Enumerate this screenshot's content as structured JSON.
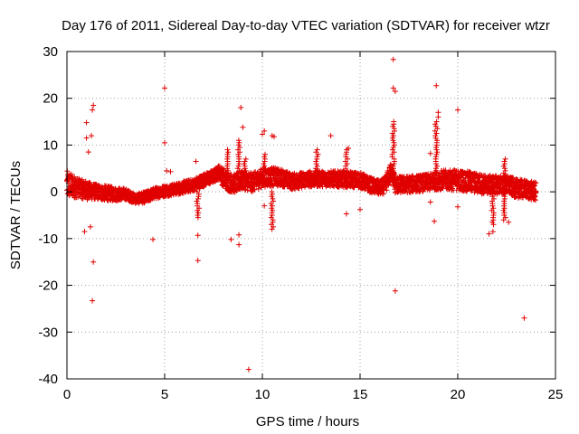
{
  "chart_data": {
    "type": "scatter",
    "title": "Day 176 of 2011, Sidereal Day-to-day VTEC variation (SDTVAR) for receiver wtzr",
    "xlabel": "GPS time / hours",
    "ylabel": "SDTVAR / TECUs",
    "xlim": [
      0,
      25
    ],
    "ylim": [
      -40,
      30
    ],
    "xticks": [
      0,
      5,
      10,
      15,
      20,
      25
    ],
    "yticks": [
      -40,
      -30,
      -20,
      -10,
      0,
      10,
      20,
      30
    ],
    "grid": true,
    "marker": "+",
    "color": "#e00000",
    "band": {
      "x": [
        0.0,
        0.3,
        0.6,
        1.0,
        1.5,
        2.0,
        2.5,
        3.0,
        3.5,
        4.0,
        4.5,
        5.0,
        5.5,
        6.0,
        6.5,
        7.0,
        7.5,
        7.8,
        8.0,
        8.3,
        8.6,
        9.0,
        9.5,
        10.0,
        10.5,
        11.0,
        11.5,
        12.0,
        12.5,
        13.0,
        13.5,
        14.0,
        14.5,
        15.0,
        15.5,
        16.0,
        16.3,
        16.6,
        16.8,
        17.0,
        17.5,
        18.0,
        18.5,
        19.0,
        19.5,
        20.0,
        20.5,
        21.0,
        21.5,
        22.0,
        22.5,
        23.0,
        23.5,
        24.0
      ],
      "center": [
        1.5,
        1.2,
        0.8,
        0.3,
        0.0,
        -0.3,
        -0.5,
        -0.5,
        -1.5,
        -1.2,
        -0.3,
        0.2,
        0.5,
        1.0,
        1.5,
        2.5,
        3.3,
        4.3,
        3.0,
        2.0,
        1.8,
        2.5,
        2.0,
        3.0,
        3.2,
        3.0,
        2.2,
        2.5,
        2.8,
        2.8,
        2.8,
        2.7,
        2.6,
        2.5,
        1.5,
        0.8,
        1.5,
        4.5,
        1.5,
        1.5,
        1.6,
        1.8,
        2.0,
        2.5,
        2.5,
        2.5,
        2.2,
        1.8,
        1.5,
        1.5,
        1.5,
        0.7,
        0.5,
        0.0
      ],
      "halfwidth": [
        3.0,
        2.5,
        2.0,
        2.0,
        1.6,
        1.6,
        1.4,
        1.2,
        1.0,
        1.2,
        1.2,
        1.2,
        1.2,
        1.3,
        1.3,
        1.4,
        1.4,
        1.5,
        2.0,
        2.0,
        2.0,
        2.0,
        2.0,
        2.0,
        2.0,
        1.8,
        1.7,
        1.7,
        1.7,
        1.7,
        1.7,
        1.7,
        1.7,
        1.7,
        1.6,
        1.6,
        1.8,
        2.0,
        1.8,
        1.8,
        1.8,
        1.8,
        1.8,
        2.0,
        2.2,
        2.2,
        2.2,
        2.2,
        2.0,
        2.0,
        2.0,
        2.0,
        2.0,
        2.0
      ]
    },
    "spikes": [
      {
        "x": 6.7,
        "y0": 0,
        "y1": -5.5
      },
      {
        "x": 8.2,
        "y0": 2,
        "y1": 9
      },
      {
        "x": 8.8,
        "y0": 2,
        "y1": 11
      },
      {
        "x": 9.1,
        "y0": 3,
        "y1": 7
      },
      {
        "x": 10.1,
        "y0": 2,
        "y1": 8
      },
      {
        "x": 10.5,
        "y0": 0,
        "y1": -8
      },
      {
        "x": 12.8,
        "y0": 2,
        "y1": 9
      },
      {
        "x": 14.3,
        "y0": 2,
        "y1": 9
      },
      {
        "x": 16.7,
        "y0": 2,
        "y1": 15
      },
      {
        "x": 18.9,
        "y0": 2,
        "y1": 15
      },
      {
        "x": 21.8,
        "y0": 0,
        "y1": -7
      },
      {
        "x": 22.4,
        "y0": 2,
        "y1": 7
      },
      {
        "x": 22.4,
        "y0": 0,
        "y1": -6
      }
    ],
    "outliers": [
      [
        0.9,
        -8.5
      ],
      [
        1.0,
        11.5
      ],
      [
        1.0,
        14.8
      ],
      [
        1.1,
        8.5
      ],
      [
        1.2,
        -7.5
      ],
      [
        1.25,
        12.0
      ],
      [
        1.3,
        17.5
      ],
      [
        1.35,
        18.5
      ],
      [
        1.35,
        -15.0
      ],
      [
        1.3,
        -23.3
      ],
      [
        4.4,
        -10.2
      ],
      [
        5.0,
        22.2
      ],
      [
        5.0,
        10.5
      ],
      [
        5.1,
        4.5
      ],
      [
        5.3,
        4.3
      ],
      [
        6.6,
        6.5
      ],
      [
        6.7,
        -9.3
      ],
      [
        6.7,
        -14.7
      ],
      [
        8.4,
        -10.2
      ],
      [
        8.8,
        -9.2
      ],
      [
        8.8,
        -11.3
      ],
      [
        8.9,
        18.0
      ],
      [
        9.0,
        13.8
      ],
      [
        9.3,
        -38.0
      ],
      [
        10.0,
        12.3
      ],
      [
        10.1,
        13.0
      ],
      [
        10.5,
        12.0
      ],
      [
        10.6,
        11.8
      ],
      [
        10.1,
        -3.0
      ],
      [
        13.5,
        12.0
      ],
      [
        14.3,
        -4.7
      ],
      [
        14.4,
        9.3
      ],
      [
        15.0,
        -3.8
      ],
      [
        16.7,
        28.3
      ],
      [
        16.7,
        22.2
      ],
      [
        16.8,
        21.5
      ],
      [
        16.8,
        -21.2
      ],
      [
        18.6,
        8.2
      ],
      [
        18.6,
        -2.2
      ],
      [
        18.9,
        22.7
      ],
      [
        19.0,
        17.0
      ],
      [
        19.0,
        16.0
      ],
      [
        18.8,
        -6.3
      ],
      [
        20.0,
        17.5
      ],
      [
        20.0,
        -3.2
      ],
      [
        21.6,
        -9.0
      ],
      [
        21.8,
        -8.5
      ],
      [
        22.6,
        -6.5
      ],
      [
        23.4,
        -27.0
      ]
    ]
  }
}
